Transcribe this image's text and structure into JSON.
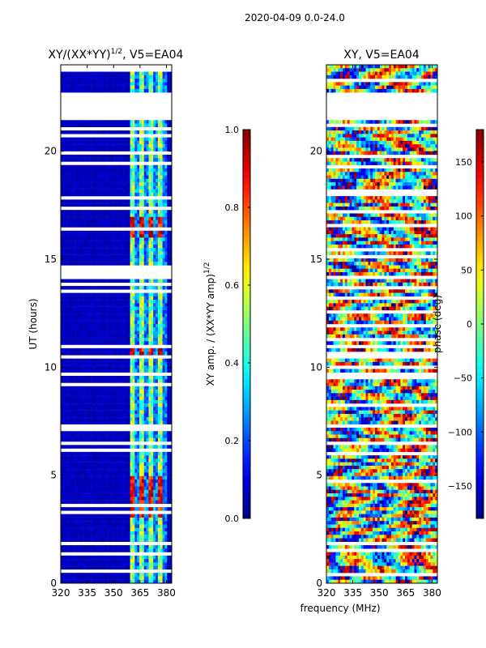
{
  "figure": {
    "suptitle": "2020-04-09 0.0-24.0",
    "shared_xlabel": "frequency (MHz)"
  },
  "chart_data": [
    {
      "type": "heatmap",
      "title_base": "XY/(XX*YY)",
      "title_exponent": "1/2",
      "title_suffix": ", V5=EA04",
      "xlabel": "",
      "ylabel": "UT (hours)",
      "xlim": [
        320,
        383
      ],
      "ylim": [
        0,
        24
      ],
      "xticks": [
        320,
        335,
        350,
        365,
        380
      ],
      "yticks": [
        0,
        5,
        10,
        15,
        20
      ],
      "gap_hours": [
        [
          21.4,
          22.8
        ]
      ],
      "active_band_mhz": [
        360,
        380
      ],
      "bright_intervals_hours": [
        [
          16.0,
          16.9
        ],
        [
          10.5,
          11.0
        ],
        [
          3.0,
          5.0
        ]
      ],
      "colorbar": {
        "label_base": "XY amp. / (XX*YY amp)",
        "label_exponent": "1/2",
        "min": 0.0,
        "max": 1.0,
        "ticks": [
          "0.0",
          "0.2",
          "0.4",
          "0.6",
          "0.8",
          "1.0"
        ],
        "colormap": "jet"
      }
    },
    {
      "type": "heatmap",
      "title": "XY, V5=EA04",
      "xlabel": "",
      "ylabel": "",
      "xlim": [
        320,
        383
      ],
      "ylim": [
        0,
        24
      ],
      "xticks": [
        320,
        335,
        350,
        365,
        380
      ],
      "yticks": [
        0,
        5,
        10,
        15,
        20
      ],
      "gap_hours": [
        [
          21.4,
          22.8
        ]
      ],
      "colorbar": {
        "label": "phase (deg)",
        "min": -180,
        "max": 180,
        "ticks": [
          -150,
          -100,
          -50,
          0,
          50,
          100,
          150
        ],
        "tick_labels": [
          "−150",
          "−100",
          "−50",
          "0",
          "50",
          "100",
          "150"
        ],
        "colormap": "jet"
      }
    }
  ]
}
